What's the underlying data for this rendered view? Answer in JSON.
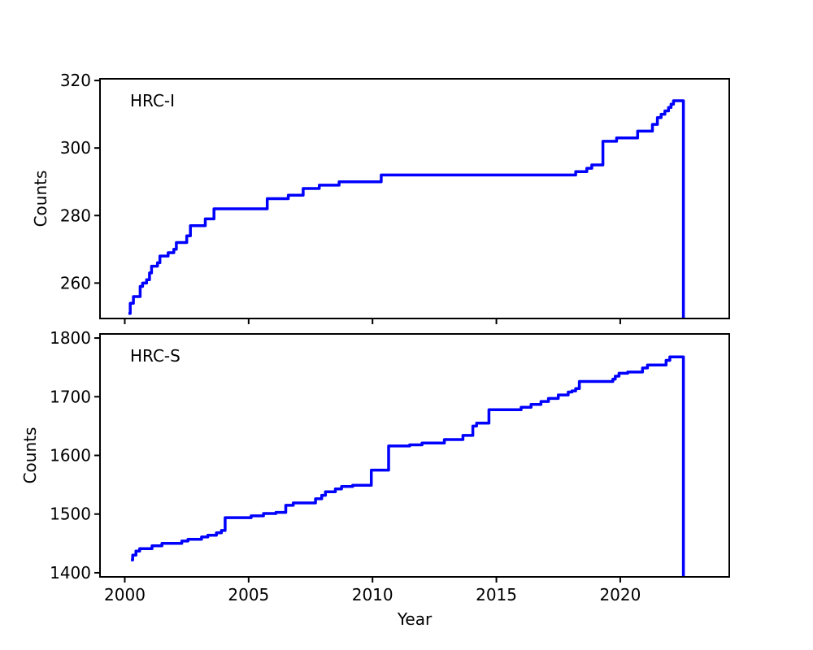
{
  "figure": {
    "background_color": "#ffffff",
    "axis_color": "#000000",
    "text_color": "#000000"
  },
  "chart_data": {
    "type": "line",
    "step": "post",
    "grid": false,
    "legend": "none",
    "xlabel": "Year",
    "xlim": [
      1999.0,
      2024.4
    ],
    "xticks": [
      2000,
      2005,
      2010,
      2015,
      2020
    ],
    "line_color": "#0000ff",
    "panels": [
      {
        "label": "HRC-I",
        "ylabel": "Counts",
        "ylim": [
          249.5,
          320.5
        ],
        "yticks": [
          260,
          280,
          300,
          320
        ],
        "show_xtick_labels": false,
        "x": [
          2000.15,
          2000.22,
          2000.35,
          2000.62,
          2000.72,
          2000.88,
          2001.0,
          2001.08,
          2001.32,
          2001.42,
          2001.75,
          2001.98,
          2002.08,
          2002.5,
          2002.65,
          2003.25,
          2003.6,
          2005.75,
          2006.6,
          2007.2,
          2007.85,
          2008.65,
          2010.35,
          2018.2,
          2018.65,
          2018.85,
          2019.3,
          2019.85,
          2020.7,
          2021.3,
          2021.5,
          2021.65,
          2021.8,
          2021.95,
          2022.05,
          2022.15,
          2022.55
        ],
        "y": [
          251,
          254,
          256,
          259,
          260,
          261,
          263,
          265,
          266,
          268,
          269,
          270,
          272,
          274,
          277,
          279,
          282,
          285,
          286,
          288,
          289,
          290,
          292,
          293,
          294,
          295,
          302,
          303,
          305,
          307,
          309,
          310,
          311,
          312,
          313,
          314,
          249.5
        ]
      },
      {
        "label": "HRC-S",
        "ylabel": "Counts",
        "ylim": [
          1393,
          1807
        ],
        "yticks": [
          1400,
          1500,
          1600,
          1700,
          1800
        ],
        "show_xtick_labels": true,
        "x": [
          2000.25,
          2000.32,
          2000.45,
          2000.6,
          2001.1,
          2001.5,
          2002.3,
          2002.55,
          2003.1,
          2003.35,
          2003.7,
          2003.9,
          2004.05,
          2005.1,
          2005.6,
          2006.1,
          2006.5,
          2006.8,
          2007.7,
          2007.95,
          2008.1,
          2008.5,
          2008.75,
          2009.2,
          2009.95,
          2010.65,
          2011.5,
          2012.0,
          2012.9,
          2013.65,
          2014.05,
          2014.2,
          2014.7,
          2016.0,
          2016.4,
          2016.8,
          2017.1,
          2017.5,
          2017.9,
          2018.05,
          2018.2,
          2018.35,
          2019.7,
          2019.8,
          2019.95,
          2020.3,
          2020.9,
          2021.1,
          2021.85,
          2022.0,
          2022.55
        ],
        "y": [
          1422,
          1430,
          1437,
          1441,
          1446,
          1450,
          1454,
          1457,
          1461,
          1464,
          1468,
          1472,
          1494,
          1497,
          1501,
          1503,
          1515,
          1519,
          1526,
          1532,
          1538,
          1543,
          1547,
          1549,
          1575,
          1616,
          1618,
          1621,
          1627,
          1634,
          1650,
          1655,
          1678,
          1682,
          1687,
          1692,
          1697,
          1703,
          1708,
          1710,
          1714,
          1726,
          1730,
          1735,
          1740,
          1742,
          1749,
          1754,
          1762,
          1768,
          1393
        ]
      }
    ]
  }
}
